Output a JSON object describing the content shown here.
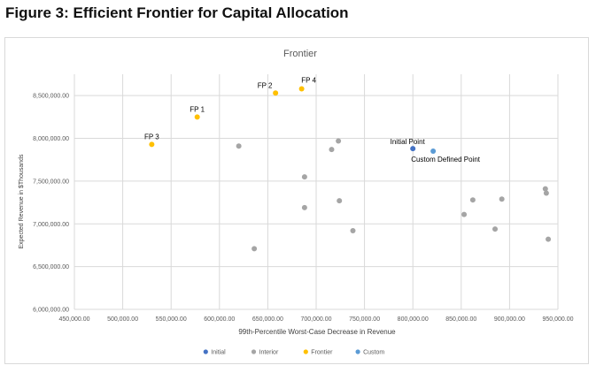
{
  "figure_title": "Figure 3: Efficient Frontier for Capital Allocation",
  "chart_data": {
    "type": "scatter",
    "title": "Frontier",
    "xlabel": "99th-Percentile Worst-Case Decrease in Revenue",
    "ylabel": "Expected Revenue in $Thousands",
    "xlim": [
      450000,
      950000
    ],
    "ylim": [
      6000000,
      8750000
    ],
    "x_ticks": [
      450000,
      500000,
      550000,
      600000,
      650000,
      700000,
      750000,
      800000,
      850000,
      900000,
      950000
    ],
    "x_tick_labels": [
      "450,000.00",
      "500,000.00",
      "550,000.00",
      "600,000.00",
      "650,000.00",
      "700,000.00",
      "750,000.00",
      "800,000.00",
      "850,000.00",
      "900,000.00",
      "950,000.00"
    ],
    "y_ticks": [
      6000000,
      6500000,
      7000000,
      7500000,
      8000000,
      8500000
    ],
    "y_tick_labels": [
      "6,000,000.00",
      "6,500,000.00",
      "7,000,000.00",
      "7,500,000.00",
      "8,000,000.00",
      "8,500,000.00"
    ],
    "grid": true,
    "legend_position": "bottom",
    "series": [
      {
        "name": "Initial",
        "color": "#4472c4",
        "points": [
          {
            "x": 800000,
            "y": 7880000,
            "label": "Initial Point"
          }
        ]
      },
      {
        "name": "Interior",
        "color": "#a5a5a5",
        "points": [
          {
            "x": 620000,
            "y": 7910000
          },
          {
            "x": 636000,
            "y": 6710000
          },
          {
            "x": 688000,
            "y": 7550000
          },
          {
            "x": 688000,
            "y": 7190000
          },
          {
            "x": 716000,
            "y": 7870000
          },
          {
            "x": 723000,
            "y": 7970000
          },
          {
            "x": 724000,
            "y": 7270000
          },
          {
            "x": 738000,
            "y": 6920000
          },
          {
            "x": 853000,
            "y": 7110000
          },
          {
            "x": 862000,
            "y": 7280000
          },
          {
            "x": 885000,
            "y": 6940000
          },
          {
            "x": 892000,
            "y": 7290000
          },
          {
            "x": 937000,
            "y": 7410000
          },
          {
            "x": 938000,
            "y": 7360000
          },
          {
            "x": 940000,
            "y": 6820000
          }
        ]
      },
      {
        "name": "Frontier",
        "color": "#ffc000",
        "points": [
          {
            "x": 530000,
            "y": 7930000,
            "label": "FP 3"
          },
          {
            "x": 577000,
            "y": 8250000,
            "label": "FP 1"
          },
          {
            "x": 658000,
            "y": 8530000,
            "label": "FP 2"
          },
          {
            "x": 685000,
            "y": 8580000,
            "label": "FP 4"
          }
        ]
      },
      {
        "name": "Custom",
        "color": "#5b9bd5",
        "points": [
          {
            "x": 821000,
            "y": 7850000,
            "label": "Custom Defined Point"
          }
        ]
      }
    ]
  }
}
